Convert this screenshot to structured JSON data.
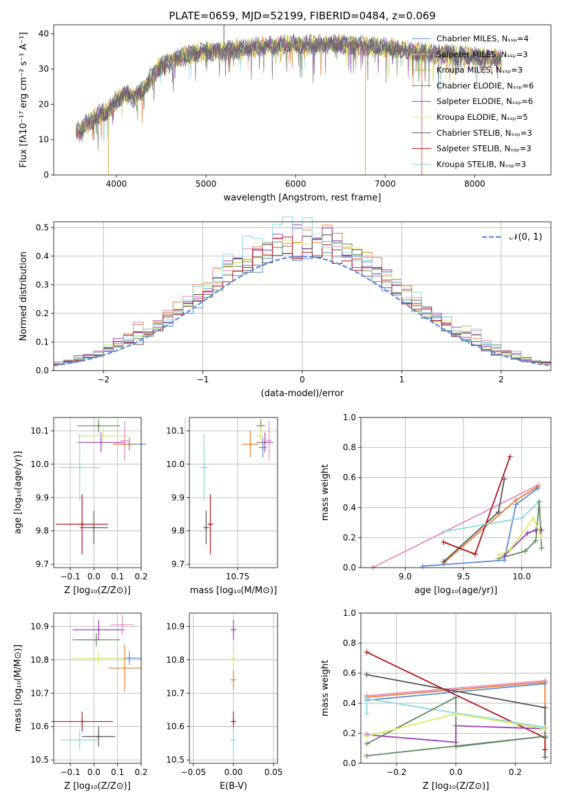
{
  "colors": {
    "Chabrier MILES": "#5b8bd6",
    "Salpeter MILES": "#e8c58a",
    "Kroupa MILES": "#ccad3e",
    "Chabrier ELODIE": "#5e8a5e",
    "Salpeter ELODIE": "#9b3fb5",
    "Kroupa ELODIE": "#d8ec62",
    "Chabrier STELIB": "#555555",
    "Salpeter STELIB": "#b0141a",
    "Kroupa STELIB": "#88d8e0",
    "orange": "#e87e2c",
    "pink": "#e28ac2",
    "gaussian": "#5a8bd8"
  },
  "chart_data": [
    {
      "id": "spectrum",
      "type": "line",
      "title": "PLATE=0659, MJD=52199, FIBERID=0484, z=0.069",
      "xlabel": "wavelength [Angstrom, rest frame]",
      "ylabel": "Flux [fλ10⁻¹⁷ erg cm⁻² s⁻¹ A⁻¹]",
      "xlim": [
        3300,
        8850
      ],
      "ylim": [
        0,
        42.5
      ],
      "xticks": [
        4000,
        5000,
        6000,
        7000,
        8000
      ],
      "yticks": [
        0,
        10,
        20,
        30,
        40
      ],
      "grid": false,
      "legend_position": "right",
      "continuum": [
        [
          3550,
          12
        ],
        [
          3700,
          15
        ],
        [
          3800,
          17
        ],
        [
          3900,
          18
        ],
        [
          4000,
          21
        ],
        [
          4100,
          23
        ],
        [
          4200,
          22
        ],
        [
          4300,
          24
        ],
        [
          4400,
          28
        ],
        [
          4500,
          31
        ],
        [
          4600,
          32
        ],
        [
          4800,
          34
        ],
        [
          5000,
          35
        ],
        [
          5200,
          35
        ],
        [
          5500,
          36
        ],
        [
          6000,
          37
        ],
        [
          6500,
          37
        ],
        [
          7000,
          36
        ],
        [
          7300,
          35
        ],
        [
          7500,
          34.5
        ],
        [
          8000,
          33.5
        ],
        [
          8300,
          33
        ]
      ],
      "spikes": [
        {
          "x": 3910,
          "y": 0
        },
        {
          "x": 5200,
          "y": 42.5
        },
        {
          "x": 6780,
          "y": 0
        },
        {
          "x": 7410,
          "y": 0
        }
      ],
      "series": [
        {
          "name": "Chabrier MILES, Nₛₛₚ=4"
        },
        {
          "name": "Salpeter MILES, Nₛₛₚ=3"
        },
        {
          "name": "Kroupa MILES, Nₛₛₚ=3"
        },
        {
          "name": "Chabrier ELODIE, Nₛₛₚ=6"
        },
        {
          "name": "Salpeter ELODIE, Nₛₛₚ=6"
        },
        {
          "name": "Kroupa ELODIE, Nₛₛₚ=5"
        },
        {
          "name": "Chabrier STELIB, Nₛₛₚ=3"
        },
        {
          "name": "Salpeter STELIB, Nₛₛₚ=3"
        },
        {
          "name": "Kroupa STELIB, Nₛₛₚ=3"
        }
      ]
    },
    {
      "id": "residuals",
      "type": "line",
      "xlabel": "(data-model)/error",
      "ylabel": "Normed distribution",
      "xlim": [
        -2.5,
        2.5
      ],
      "ylim": [
        0,
        0.52
      ],
      "xticks": [
        -2,
        -1,
        0,
        1,
        2
      ],
      "yticks": [
        0.0,
        0.1,
        0.2,
        0.3,
        0.4,
        0.5
      ],
      "grid": true,
      "legend_position": "top-right",
      "legend": [
        "𝒩(0, 1)"
      ],
      "gaussian": {
        "mean": 0,
        "sigma": 1
      },
      "bin_width": 0.1,
      "peaks": [
        0.43,
        0.48,
        0.45,
        0.47,
        0.46,
        0.49,
        0.45,
        0.44,
        0.5
      ]
    },
    {
      "id": "age_vs_Z",
      "type": "scatter",
      "xlabel": "Z [log₁₀(Z/Z⊙)]",
      "ylabel": "age [log₁₀(age/yr)]",
      "xlim": [
        -0.17,
        0.2
      ],
      "ylim": [
        9.69,
        10.14
      ],
      "xticks": [
        -0.1,
        0.0,
        0.1,
        0.2
      ],
      "yticks": [
        9.7,
        9.8,
        9.9,
        10.0,
        10.1
      ],
      "grid": true,
      "points": [
        {
          "c": "Chabrier MILES",
          "x": 0.15,
          "y": 10.06,
          "ex": 0.07,
          "ey": 0.02
        },
        {
          "c": "orange",
          "x": 0.13,
          "y": 10.06,
          "ex": 0.05,
          "ey": 0.02
        },
        {
          "c": "Chabrier ELODIE",
          "x": 0.02,
          "y": 10.115,
          "ex": 0.09,
          "ey": 0.02
        },
        {
          "c": "Salpeter ELODIE",
          "x": 0.03,
          "y": 10.065,
          "ex": 0.1,
          "ey": 0.03
        },
        {
          "c": "Kroupa ELODIE",
          "x": 0.04,
          "y": 10.085,
          "ex": 0.11,
          "ey": 0.03
        },
        {
          "c": "pink",
          "x": 0.13,
          "y": 10.07,
          "ex": 0.02,
          "ey": 0.06
        },
        {
          "c": "Chabrier STELIB",
          "x": 0.0,
          "y": 9.81,
          "ex": 0.06,
          "ey": 0.05
        },
        {
          "c": "Salpeter STELIB",
          "x": -0.05,
          "y": 9.82,
          "ex": 0.11,
          "ey": 0.09
        },
        {
          "c": "Kroupa STELIB",
          "x": -0.06,
          "y": 9.99,
          "ex": 0.09,
          "ey": 0.1
        }
      ]
    },
    {
      "id": "age_vs_mass",
      "type": "scatter",
      "xlabel": "mass [log₁₀(M/M⊙)]",
      "xlim": [
        10.52,
        10.94
      ],
      "ylim": [
        9.69,
        10.14
      ],
      "xticks": [
        10.5,
        10.75
      ],
      "yticks": [
        9.7,
        9.8,
        9.9,
        10.0,
        10.1
      ],
      "grid": true,
      "points": [
        {
          "c": "Chabrier MILES",
          "x": 10.87,
          "y": 10.05,
          "ex": 0.02,
          "ey": 0.03
        },
        {
          "c": "orange",
          "x": 10.81,
          "y": 10.06,
          "ex": 0.04,
          "ey": 0.04
        },
        {
          "c": "Chabrier ELODIE",
          "x": 10.86,
          "y": 10.115,
          "ex": 0.02,
          "ey": 0.02
        },
        {
          "c": "Salpeter ELODIE",
          "x": 10.88,
          "y": 10.065,
          "ex": 0.04,
          "ey": 0.03
        },
        {
          "c": "Kroupa ELODIE",
          "x": 10.86,
          "y": 10.085,
          "ex": 0.02,
          "ey": 0.03
        },
        {
          "c": "pink",
          "x": 10.9,
          "y": 10.07,
          "ex": 0.01,
          "ey": 0.06
        },
        {
          "c": "Chabrier STELIB",
          "x": 10.6,
          "y": 9.81,
          "ex": 0.01,
          "ey": 0.05
        },
        {
          "c": "Salpeter STELIB",
          "x": 10.62,
          "y": 9.82,
          "ex": 0.01,
          "ey": 0.09
        },
        {
          "c": "Kroupa STELIB",
          "x": 10.59,
          "y": 9.99,
          "ex": 0.02,
          "ey": 0.1
        }
      ]
    },
    {
      "id": "weight_vs_age",
      "type": "line",
      "xlabel": "age [log₁₀(age/yr)]",
      "ylabel": "mass weight",
      "xlim": [
        8.62,
        10.25
      ],
      "ylim": [
        0,
        1.0
      ],
      "xticks": [
        9.0,
        9.5,
        10.0
      ],
      "yticks": [
        0.0,
        0.2,
        0.4,
        0.6,
        0.8,
        1.0
      ],
      "grid": true,
      "series": [
        {
          "c": "pink",
          "pts": [
            [
              8.72,
              0.0
            ],
            [
              10.14,
              0.55
            ]
          ]
        },
        {
          "c": "orange",
          "pts": [
            [
              9.33,
              0.03
            ],
            [
              9.95,
              0.45
            ],
            [
              10.14,
              0.54
            ]
          ]
        },
        {
          "c": "Chabrier MILES",
          "pts": [
            [
              9.15,
              0.01
            ],
            [
              9.85,
              0.05
            ],
            [
              9.95,
              0.42
            ],
            [
              10.14,
              0.53
            ]
          ]
        },
        {
          "c": "Chabrier STELIB",
          "pts": [
            [
              9.33,
              0.04
            ],
            [
              9.8,
              0.37
            ],
            [
              9.85,
              0.59
            ]
          ]
        },
        {
          "c": "Salpeter STELIB",
          "pts": [
            [
              9.33,
              0.17
            ],
            [
              9.6,
              0.09
            ],
            [
              9.9,
              0.74
            ]
          ]
        },
        {
          "c": "Kroupa STELIB",
          "pts": [
            [
              9.33,
              0.24
            ],
            [
              10.0,
              0.33
            ],
            [
              10.15,
              0.44
            ]
          ]
        },
        {
          "c": "Chabrier ELODIE",
          "pts": [
            [
              9.8,
              0.06
            ],
            [
              10.03,
              0.11
            ],
            [
              10.12,
              0.18
            ],
            [
              10.15,
              0.44
            ],
            [
              10.17,
              0.13
            ]
          ]
        },
        {
          "c": "Salpeter ELODIE",
          "pts": [
            [
              9.85,
              0.08
            ],
            [
              10.05,
              0.23
            ],
            [
              10.12,
              0.25
            ],
            [
              10.17,
              0.25
            ]
          ]
        },
        {
          "c": "Kroupa ELODIE",
          "pts": [
            [
              9.8,
              0.08
            ],
            [
              9.9,
              0.12
            ],
            [
              10.1,
              0.33
            ],
            [
              10.17,
              0.2
            ]
          ]
        }
      ]
    },
    {
      "id": "mass_vs_Z",
      "type": "scatter",
      "xlabel": "Z [log₁₀(Z/Z⊙)]",
      "ylabel": "mass [log₁₀(M/M⊙)]",
      "xlim": [
        -0.17,
        0.2
      ],
      "ylim": [
        10.49,
        10.94
      ],
      "xticks": [
        -0.1,
        0.0,
        0.1,
        0.2
      ],
      "yticks": [
        10.5,
        10.6,
        10.7,
        10.8,
        10.9
      ],
      "grid": true,
      "points": [
        {
          "c": "Chabrier MILES",
          "x": 0.15,
          "y": 10.805,
          "ex": 0.05,
          "ey": 0.02
        },
        {
          "c": "orange",
          "x": 0.13,
          "y": 10.775,
          "ex": 0.07,
          "ey": 0.07
        },
        {
          "c": "Chabrier ELODIE",
          "x": 0.01,
          "y": 10.86,
          "ex": 0.1,
          "ey": 0.02
        },
        {
          "c": "Salpeter ELODIE",
          "x": 0.02,
          "y": 10.89,
          "ex": 0.11,
          "ey": 0.03
        },
        {
          "c": "Kroupa ELODIE",
          "x": 0.02,
          "y": 10.805,
          "ex": 0.11,
          "ey": 0.02
        },
        {
          "c": "pink",
          "x": 0.12,
          "y": 10.905,
          "ex": 0.05,
          "ey": 0.03
        },
        {
          "c": "Chabrier STELIB",
          "x": 0.02,
          "y": 10.57,
          "ex": 0.07,
          "ey": 0.03
        },
        {
          "c": "Salpeter STELIB",
          "x": -0.05,
          "y": 10.615,
          "ex": 0.13,
          "ey": 0.03
        },
        {
          "c": "Kroupa STELIB",
          "x": -0.06,
          "y": 10.56,
          "ex": 0.08,
          "ey": 0.03
        }
      ]
    },
    {
      "id": "mass_vs_ebv",
      "type": "scatter",
      "xlabel": "E(B-V)",
      "xlim": [
        -0.055,
        0.055
      ],
      "ylim": [
        10.49,
        10.94
      ],
      "xticks": [
        -0.05,
        0.0,
        0.05
      ],
      "yticks": [
        10.5,
        10.6,
        10.7,
        10.8,
        10.9
      ],
      "grid": true,
      "points": [
        {
          "c": "Salpeter ELODIE",
          "x": 0.0,
          "y": 10.89,
          "ex": 0,
          "ey": 0.03
        },
        {
          "c": "Kroupa ELODIE",
          "x": 0.0,
          "y": 10.805,
          "ex": 0,
          "ey": 0.02
        },
        {
          "c": "orange",
          "x": 0.0,
          "y": 10.74,
          "ex": 0,
          "ey": 0.03
        },
        {
          "c": "Salpeter STELIB",
          "x": 0.0,
          "y": 10.615,
          "ex": 0,
          "ey": 0.03
        },
        {
          "c": "Kroupa STELIB",
          "x": 0.0,
          "y": 10.56,
          "ex": 0,
          "ey": 0.04
        }
      ]
    },
    {
      "id": "weight_vs_Z",
      "type": "line",
      "xlabel": "Z [log₁₀(Z/Z⊙)]",
      "ylabel": "mass weight",
      "xlim": [
        -0.32,
        0.32
      ],
      "ylim": [
        0,
        1.0
      ],
      "xticks": [
        -0.2,
        0.0,
        0.2
      ],
      "yticks": [
        0.0,
        0.2,
        0.4,
        0.6,
        0.8,
        1.0
      ],
      "grid": true,
      "series": [
        {
          "c": "pink",
          "pts": [
            [
              -0.3,
              0.45
            ],
            [
              0.3,
              0.55
            ]
          ]
        },
        {
          "c": "orange",
          "pts": [
            [
              -0.3,
              0.44
            ],
            [
              0.3,
              0.54
            ],
            [
              0.3,
              0.09
            ]
          ]
        },
        {
          "c": "Chabrier MILES",
          "pts": [
            [
              -0.3,
              0.42
            ],
            [
              0.3,
              0.53
            ]
          ]
        },
        {
          "c": "Chabrier STELIB",
          "pts": [
            [
              -0.3,
              0.59
            ],
            [
              0.3,
              0.37
            ],
            [
              0.3,
              0.04
            ]
          ]
        },
        {
          "c": "Salpeter STELIB",
          "pts": [
            [
              -0.3,
              0.74
            ],
            [
              0.3,
              0.17
            ],
            [
              0.3,
              0.09
            ]
          ]
        },
        {
          "c": "Kroupa STELIB",
          "pts": [
            [
              -0.3,
              0.33
            ],
            [
              -0.3,
              0.43
            ],
            [
              0.3,
              0.24
            ]
          ]
        },
        {
          "c": "Chabrier ELODIE",
          "pts": [
            [
              -0.3,
              0.13
            ],
            [
              0.0,
              0.44
            ],
            [
              0.0,
              0.11
            ],
            [
              0.3,
              0.18
            ],
            [
              -0.3,
              0.05
            ]
          ]
        },
        {
          "c": "Salpeter ELODIE",
          "pts": [
            [
              -0.3,
              0.19
            ],
            [
              0.0,
              0.14
            ],
            [
              0.0,
              0.25
            ],
            [
              0.3,
              0.23
            ]
          ]
        },
        {
          "c": "Kroupa ELODIE",
          "pts": [
            [
              -0.3,
              0.18
            ],
            [
              0.0,
              0.33
            ],
            [
              0.3,
              0.23
            ]
          ]
        }
      ]
    }
  ]
}
